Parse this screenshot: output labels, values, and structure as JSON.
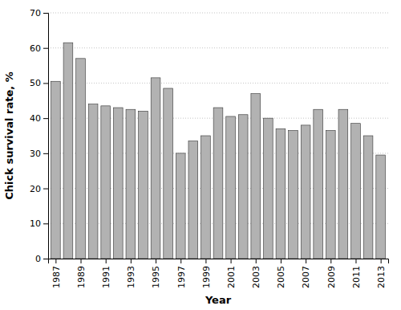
{
  "chart_data": {
    "type": "bar",
    "x": [
      1987,
      1988,
      1989,
      1990,
      1991,
      1992,
      1993,
      1994,
      1995,
      1996,
      1997,
      1998,
      1999,
      2000,
      2001,
      2002,
      2003,
      2004,
      2005,
      2006,
      2007,
      2008,
      2009,
      2010,
      2011,
      2012,
      2013
    ],
    "values": [
      50.5,
      61.5,
      57.0,
      44.0,
      43.5,
      43.0,
      42.5,
      42.0,
      51.5,
      48.5,
      30.0,
      33.5,
      35.0,
      43.0,
      40.5,
      41.0,
      47.0,
      40.0,
      37.0,
      36.5,
      38.0,
      42.5,
      36.5,
      42.5,
      38.5,
      35.0,
      29.5
    ],
    "color": "#b2b2b2",
    "xlabel": "Year",
    "ylabel": "Chick survival rate, %",
    "xlim": [
      1986.4,
      2013.6
    ],
    "xticks": [
      1987,
      1989,
      1991,
      1993,
      1995,
      1997,
      1999,
      2001,
      2003,
      2005,
      2007,
      2009,
      2011,
      2013
    ],
    "ylim": [
      0,
      70
    ],
    "yticks": [
      0,
      10,
      20,
      30,
      40,
      50,
      60,
      70
    ],
    "grid": true
  }
}
